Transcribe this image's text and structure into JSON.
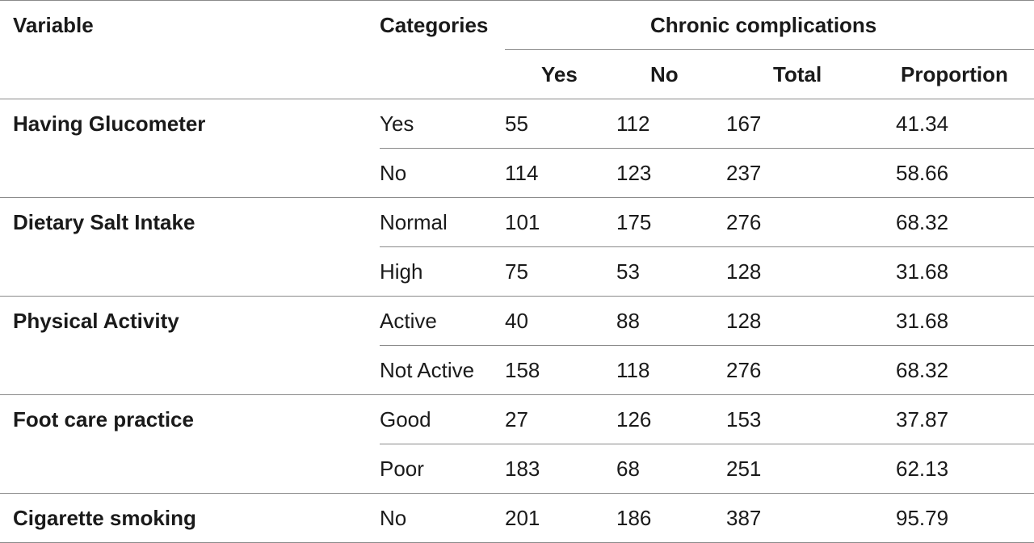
{
  "table": {
    "headers": {
      "variable": "Variable",
      "categories": "Categories",
      "group": "Chronic complications",
      "yes": "Yes",
      "no": "No",
      "total": "Total",
      "proportion": "Proportion"
    },
    "rows": [
      {
        "variable": "Having Glucometer",
        "category": "Yes",
        "yes": "55",
        "no": "112",
        "total": "167",
        "proportion": "41.34"
      },
      {
        "variable": "",
        "category": "No",
        "yes": "114",
        "no": "123",
        "total": "237",
        "proportion": "58.66"
      },
      {
        "variable": "Dietary Salt Intake",
        "category": "Normal",
        "yes": "101",
        "no": "175",
        "total": "276",
        "proportion": "68.32"
      },
      {
        "variable": "",
        "category": "High",
        "yes": "75",
        "no": "53",
        "total": "128",
        "proportion": "31.68"
      },
      {
        "variable": "Physical Activity",
        "category": "Active",
        "yes": "40",
        "no": "88",
        "total": "128",
        "proportion": "31.68"
      },
      {
        "variable": "",
        "category": "Not Active",
        "yes": "158",
        "no": "118",
        "total": "276",
        "proportion": "68.32"
      },
      {
        "variable": "Foot care practice",
        "category": "Good",
        "yes": "27",
        "no": "126",
        "total": "153",
        "proportion": "37.87"
      },
      {
        "variable": "",
        "category": "Poor",
        "yes": "183",
        "no": "68",
        "total": "251",
        "proportion": "62.13"
      },
      {
        "variable": "Cigarette smoking",
        "category": "No",
        "yes": "201",
        "no": "186",
        "total": "387",
        "proportion": "95.79"
      }
    ]
  }
}
